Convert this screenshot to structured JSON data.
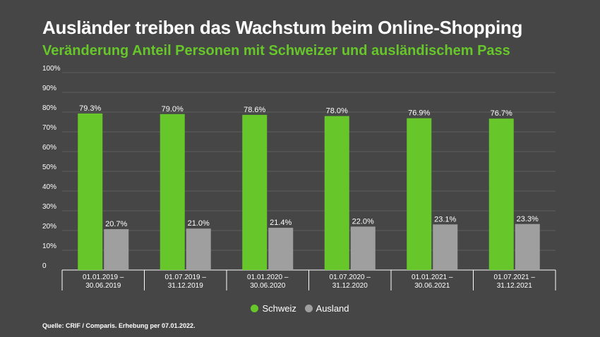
{
  "title": "Ausländer treiben das Wachstum beim Online-Shopping",
  "subtitle": "Veränderung Anteil Personen mit Schweizer und ausländischem Pass",
  "source": "Quelle: CRIF / Comparis. Erhebung per 07.01.2022.",
  "colors": {
    "schweiz": "#66c62a",
    "ausland": "#9f9f9f",
    "accent": "#66c62a"
  },
  "legend": {
    "schweiz": "Schweiz",
    "ausland": "Ausland"
  },
  "chart_data": {
    "type": "bar",
    "title": "Ausländer treiben das Wachstum beim Online-Shopping",
    "categories": [
      [
        "01.01.2019 –",
        "30.06.2019"
      ],
      [
        "01.07.2019 –",
        "31.12.2019"
      ],
      [
        "01.01.2020 –",
        "30.06.2020"
      ],
      [
        "01.07.2020 –",
        "31.12.2020"
      ],
      [
        "01.01.2021 –",
        "30.06.2021"
      ],
      [
        "01.07.2021 –",
        "31.12.2021"
      ]
    ],
    "series": [
      {
        "name": "Schweiz",
        "values": [
          79.3,
          79.0,
          78.6,
          78.0,
          76.9,
          76.7
        ],
        "labels": [
          "79.3%",
          "79.0%",
          "78.6%",
          "78.0%",
          "76.9%",
          "76.7%"
        ]
      },
      {
        "name": "Ausland",
        "values": [
          20.7,
          21.0,
          21.4,
          22.0,
          23.1,
          23.3
        ],
        "labels": [
          "20.7%",
          "21.0%",
          "21.4%",
          "22.0%",
          "23.1%",
          "23.3%"
        ]
      }
    ],
    "yticks": [
      0,
      10,
      20,
      30,
      40,
      50,
      60,
      70,
      80,
      90,
      100
    ],
    "ytick_labels": [
      "0",
      "10%",
      "20%",
      "30%",
      "40%",
      "50%",
      "60%",
      "70%",
      "80%",
      "90%",
      "100%"
    ],
    "ylim": [
      0,
      100
    ],
    "grid": true,
    "legend_position": "bottom"
  }
}
